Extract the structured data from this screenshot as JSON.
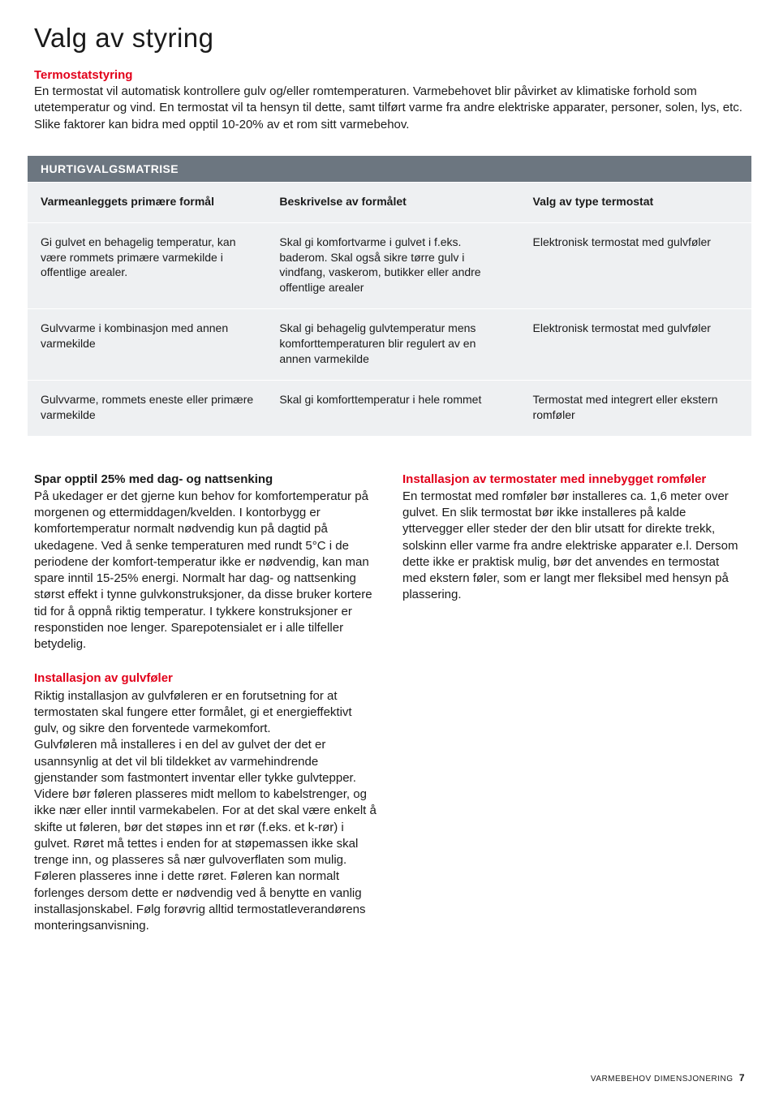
{
  "title": "Valg av styring",
  "intro_heading": "Termostatstyring",
  "intro_body": "En termostat vil automatisk kontrollere gulv og/eller romtemperaturen. Varmebehovet blir påvirket av klimatiske forhold som utetemperatur og vind. En termostat vil ta hensyn til dette, samt tilført varme fra andre elektriske apparater, personer, solen, lys, etc. Slike faktorer kan bidra med opptil 10-20% av et rom sitt varmebehov.",
  "matrix": {
    "title": "HURTIGVALGSMATRISE",
    "headers": [
      "Varmeanleggets primære formål",
      "Beskrivelse av formålet",
      "Valg av type termostat"
    ],
    "rows": [
      {
        "c1": "Gi gulvet en behagelig temperatur, kan være rommets primære varmekilde i offentlige arealer.",
        "c2": "Skal gi komfortvarme i gulvet i f.eks. baderom. Skal også sikre tørre gulv i vindfang, vaskerom, butikker eller andre offentlige arealer",
        "c3": "Elektronisk termostat med gulvføler"
      },
      {
        "c1": "Gulvvarme i kombinasjon med annen varmekilde",
        "c2": "Skal gi behagelig gulvtemperatur mens komforttemperaturen blir regulert av en annen varmekilde",
        "c3": "Elektronisk termostat med gulvføler"
      },
      {
        "c1": "Gulvvarme, rommets eneste eller primære varmekilde",
        "c2": "Skal gi komforttemperatur i hele rommet",
        "c3": "Termostat med integrert eller ekstern romføler"
      }
    ]
  },
  "left_col": {
    "spar": {
      "title": "Spar opptil 25% med dag- og nattsenking",
      "body": "På ukedager er det gjerne kun behov for komfortemperatur på morgenen og ettermiddagen/kvelden. I kontorbygg er komfortemperatur normalt nødvendig kun på dagtid på ukedagene. Ved å senke temperaturen med rundt 5°C i de periodene der komfort-temperatur ikke er nødvendig, kan man spare inntil 15-25% energi. Normalt har dag- og nattsenking størst effekt i tynne gulvkonstruksjoner, da disse bruker kortere tid for å oppnå riktig temperatur. I tykkere konstruksjoner er responstiden noe lenger. Sparepotensialet er i alle tilfeller betydelig."
    },
    "install_gulv": {
      "title": "Installasjon av gulvføler",
      "body": "Riktig installasjon av gulvføleren er en forutsetning for at termostaten skal fungere etter formålet, gi et energieffektivt gulv, og sikre den forventede varmekomfort.\nGulvføleren må installeres i en del av gulvet der det er usannsynlig at det vil bli tildekket av varmehindrende gjenstander som fastmontert inventar eller tykke gulvtepper. Videre bør føleren plasseres midt mellom to kabelstrenger, og ikke nær eller inntil varmekabelen. For at det skal være enkelt å skifte ut føleren, bør det støpes inn et rør (f.eks. et k-rør) i gulvet. Røret må tettes i enden for at støpemassen ikke skal trenge inn, og plasseres så nær gulvoverflaten som mulig. Føleren plasseres inne i dette røret. Føleren kan normalt forlenges dersom dette er nødvendig ved å benytte en vanlig installasjonskabel. Følg forøvrig alltid termostatleverandørens monteringsanvisning."
    }
  },
  "right_col": {
    "install_rom": {
      "title": "Installasjon av termostater med innebygget romføler",
      "body": "En termostat med romføler bør installeres ca. 1,6 meter over gulvet. En slik termostat bør ikke installeres på kalde yttervegger eller steder der den blir utsatt for direkte trekk, solskinn eller varme fra andre elektriske apparater e.l. Dersom dette ikke er praktisk mulig, bør det anvendes en termostat med ekstern føler, som er langt mer fleksibel med hensyn på plassering."
    }
  },
  "footer": {
    "label": "VARMEBEHOV DIMENSJONERING",
    "page": "7"
  }
}
